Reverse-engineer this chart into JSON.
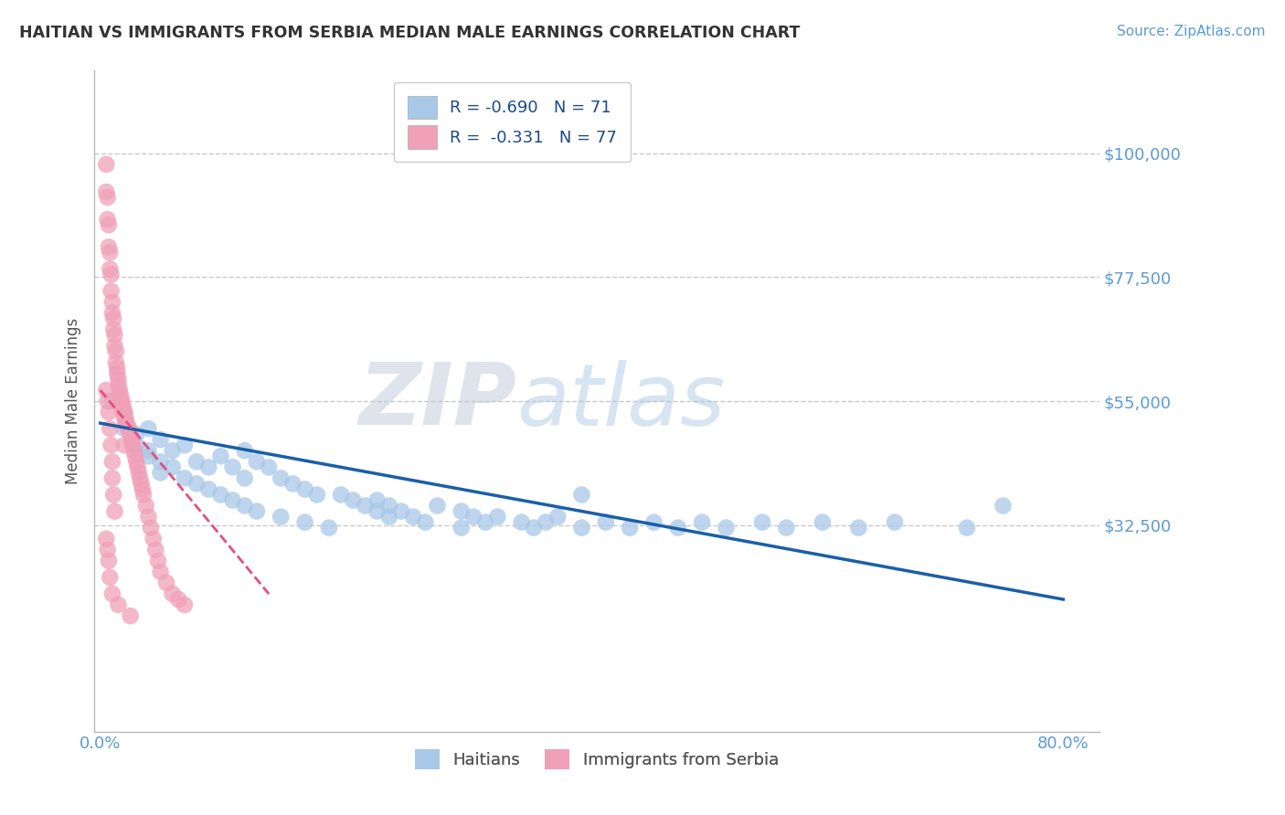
{
  "title": "HAITIAN VS IMMIGRANTS FROM SERBIA MEDIAN MALE EARNINGS CORRELATION CHART",
  "source": "Source: ZipAtlas.com",
  "ylabel": "Median Male Earnings",
  "ylim": [
    -5000,
    115000
  ],
  "xlim": [
    -0.005,
    0.83
  ],
  "watermark_zip": "ZIP",
  "watermark_atlas": "atlas",
  "grid_yticks": [
    100000,
    77500,
    55000,
    32500
  ],
  "grid_ytick_labels": [
    "$100,000",
    "$77,500",
    "$55,000",
    "$32,500"
  ],
  "xtick_vals": [
    0.0,
    0.8
  ],
  "xtick_labels": [
    "0.0%",
    "80.0%"
  ],
  "grid_color": "#c8c8d0",
  "background_color": "#ffffff",
  "text_color": "#5b9bd5",
  "title_color": "#333333",
  "legend_blue_label": "R = -0.690   N = 71",
  "legend_pink_label": "R =  -0.331   N = 77",
  "legend_bottom": [
    "Haitians",
    "Immigrants from Serbia"
  ],
  "blue_color": "#a8c8e8",
  "pink_color": "#f0a0b8",
  "blue_line_color": "#1a5fa8",
  "pink_line_color": "#e05080",
  "blue_line": {
    "x0": 0.0,
    "x1": 0.8,
    "y0": 51000,
    "y1": 19000
  },
  "pink_line": {
    "x0": 0.0,
    "x1": 0.14,
    "y0": 57000,
    "y1": 20000
  },
  "blue_x": [
    0.01,
    0.02,
    0.02,
    0.03,
    0.03,
    0.04,
    0.04,
    0.04,
    0.05,
    0.05,
    0.05,
    0.06,
    0.06,
    0.07,
    0.07,
    0.08,
    0.08,
    0.09,
    0.09,
    0.1,
    0.1,
    0.11,
    0.11,
    0.12,
    0.12,
    0.12,
    0.13,
    0.13,
    0.14,
    0.15,
    0.15,
    0.16,
    0.17,
    0.17,
    0.18,
    0.19,
    0.2,
    0.21,
    0.22,
    0.23,
    0.23,
    0.24,
    0.24,
    0.25,
    0.26,
    0.27,
    0.28,
    0.3,
    0.3,
    0.31,
    0.32,
    0.33,
    0.35,
    0.36,
    0.37,
    0.38,
    0.4,
    0.42,
    0.44,
    0.46,
    0.48,
    0.5,
    0.52,
    0.55,
    0.57,
    0.6,
    0.63,
    0.66,
    0.72,
    0.4,
    0.75
  ],
  "blue_y": [
    55000,
    53000,
    50000,
    49000,
    47000,
    50000,
    46000,
    45000,
    48000,
    44000,
    42000,
    46000,
    43000,
    47000,
    41000,
    44000,
    40000,
    43000,
    39000,
    45000,
    38000,
    43000,
    37000,
    46000,
    41000,
    36000,
    44000,
    35000,
    43000,
    41000,
    34000,
    40000,
    39000,
    33000,
    38000,
    32000,
    38000,
    37000,
    36000,
    37000,
    35000,
    36000,
    34000,
    35000,
    34000,
    33000,
    36000,
    35000,
    32000,
    34000,
    33000,
    34000,
    33000,
    32000,
    33000,
    34000,
    32000,
    33000,
    32000,
    33000,
    32000,
    33000,
    32000,
    33000,
    32000,
    33000,
    32000,
    33000,
    32000,
    38000,
    36000
  ],
  "pink_x": [
    0.005,
    0.005,
    0.006,
    0.006,
    0.007,
    0.007,
    0.008,
    0.008,
    0.009,
    0.009,
    0.01,
    0.01,
    0.011,
    0.011,
    0.012,
    0.012,
    0.013,
    0.013,
    0.014,
    0.014,
    0.015,
    0.015,
    0.016,
    0.016,
    0.017,
    0.017,
    0.018,
    0.018,
    0.019,
    0.019,
    0.02,
    0.02,
    0.021,
    0.021,
    0.022,
    0.023,
    0.024,
    0.025,
    0.026,
    0.027,
    0.028,
    0.029,
    0.03,
    0.031,
    0.032,
    0.033,
    0.034,
    0.035,
    0.036,
    0.038,
    0.04,
    0.042,
    0.044,
    0.046,
    0.048,
    0.05,
    0.055,
    0.06,
    0.065,
    0.07,
    0.005,
    0.006,
    0.007,
    0.008,
    0.009,
    0.01,
    0.01,
    0.011,
    0.012,
    0.02,
    0.005,
    0.006,
    0.007,
    0.008,
    0.01,
    0.015,
    0.025
  ],
  "pink_y": [
    98000,
    93000,
    92000,
    88000,
    87000,
    83000,
    82000,
    79000,
    78000,
    75000,
    73000,
    71000,
    70000,
    68000,
    67000,
    65000,
    64000,
    62000,
    61000,
    60000,
    59000,
    58000,
    57000,
    56000,
    56000,
    55000,
    55000,
    54000,
    54000,
    53000,
    53000,
    52000,
    52000,
    51000,
    51000,
    50000,
    50000,
    49000,
    48000,
    47000,
    46000,
    45000,
    44000,
    43000,
    42000,
    41000,
    40000,
    39000,
    38000,
    36000,
    34000,
    32000,
    30000,
    28000,
    26000,
    24000,
    22000,
    20000,
    19000,
    18000,
    57000,
    55000,
    53000,
    50000,
    47000,
    44000,
    41000,
    38000,
    35000,
    47000,
    30000,
    28000,
    26000,
    23000,
    20000,
    18000,
    16000
  ]
}
